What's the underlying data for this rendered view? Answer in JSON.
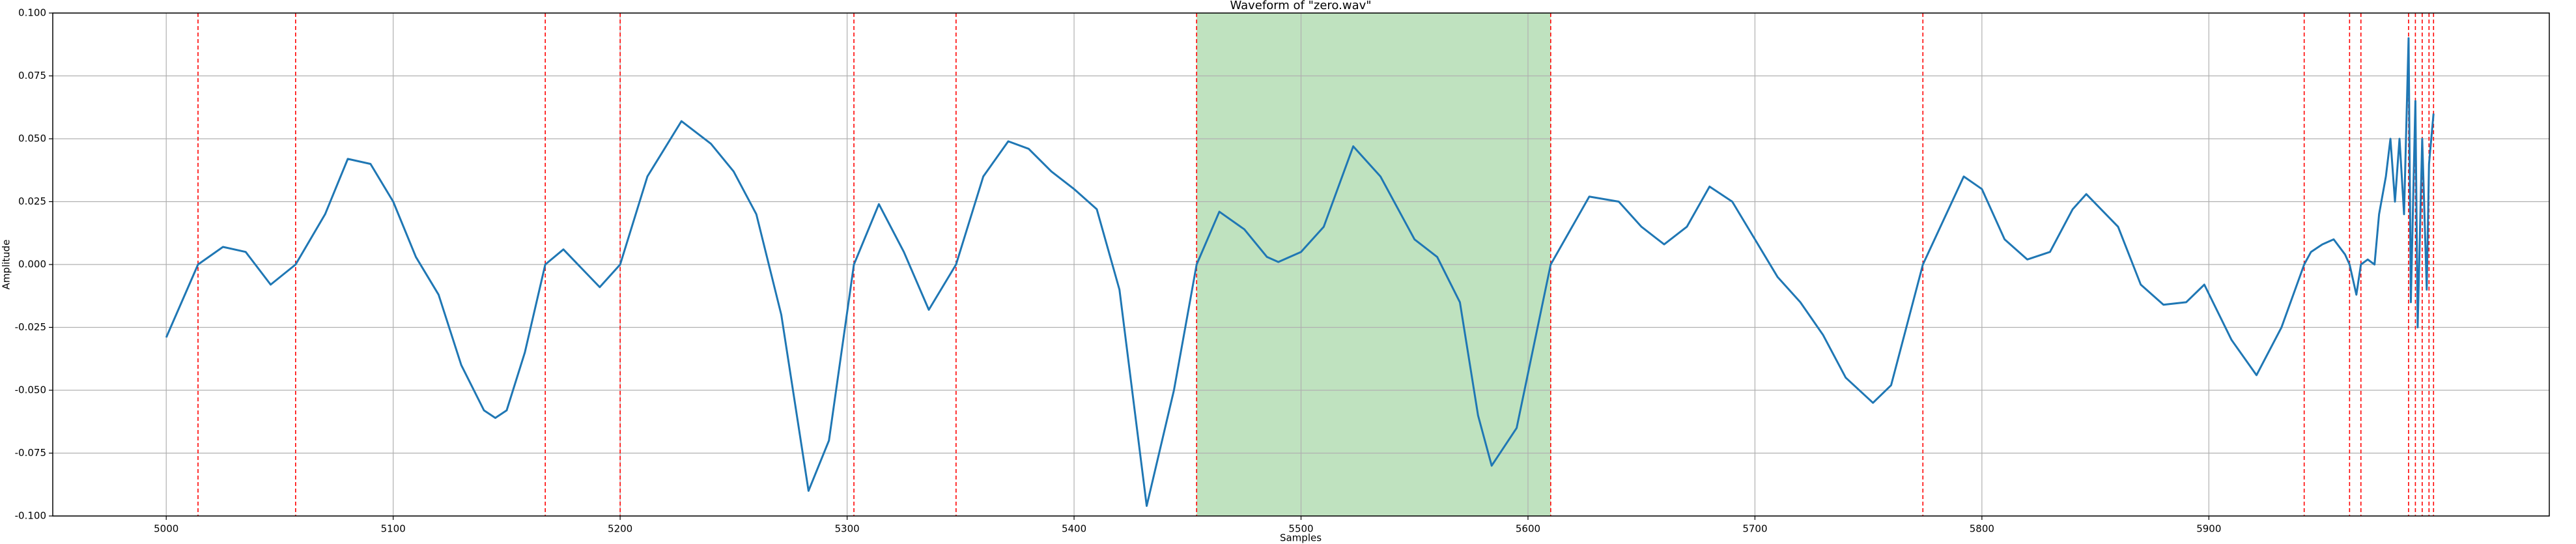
{
  "chart_data": {
    "type": "line",
    "title": "Waveform of \"zero.wav\"",
    "x_label": "Samples",
    "y_label": "Amplitude",
    "x": [
      5000,
      5014,
      5025,
      5035,
      5046,
      5057,
      5070,
      5080,
      5090,
      5100,
      5110,
      5120,
      5130,
      5140,
      5145,
      5150,
      5158,
      5167,
      5175,
      5191,
      5200,
      5212,
      5227,
      5240,
      5250,
      5260,
      5271,
      5283,
      5292,
      5303,
      5314,
      5325,
      5336,
      5348,
      5360,
      5371,
      5380,
      5390,
      5400,
      5410,
      5420,
      5432,
      5444,
      5454,
      5464,
      5475,
      5485,
      5490,
      5500,
      5510,
      5523,
      5535,
      5550,
      5560,
      5570,
      5578,
      5584,
      5595,
      5610,
      5627,
      5640,
      5650,
      5660,
      5670,
      5680,
      5690,
      5700,
      5710,
      5720,
      5730,
      5740,
      5752,
      5760,
      5774,
      5792,
      5800,
      5810,
      5820,
      5830,
      5840,
      5846,
      5860,
      5870,
      5880,
      5890,
      5898,
      5910,
      5921,
      5932,
      5942,
      5945,
      5950,
      5955,
      5960,
      5962,
      5965,
      5967,
      5970,
      5973,
      5975,
      5978,
      5980,
      5982,
      5984,
      5986,
      5988,
      5989,
      5991,
      5992,
      5994,
      5996,
      5997,
      5999
    ],
    "series": [
      {
        "color": "#1f77b4",
        "values": [
          -0.029,
          0,
          0.007,
          0.005,
          -0.008,
          0,
          0.02,
          0.042,
          0.04,
          0.025,
          0.003,
          -0.012,
          -0.04,
          -0.058,
          -0.061,
          -0.058,
          -0.035,
          0,
          0.006,
          -0.009,
          0,
          0.035,
          0.057,
          0.048,
          0.037,
          0.02,
          -0.02,
          -0.09,
          -0.07,
          0,
          0.024,
          0.005,
          -0.018,
          0,
          0.035,
          0.049,
          0.046,
          0.037,
          0.03,
          0.022,
          -0.01,
          -0.096,
          -0.05,
          0,
          0.021,
          0.014,
          0.003,
          0.001,
          0.005,
          0.015,
          0.047,
          0.035,
          0.01,
          0.003,
          -0.015,
          -0.06,
          -0.08,
          -0.065,
          0,
          0.027,
          0.025,
          0.015,
          0.008,
          0.015,
          0.031,
          0.025,
          0.01,
          -0.005,
          -0.015,
          -0.028,
          -0.045,
          -0.055,
          -0.048,
          0,
          0.035,
          0.03,
          0.01,
          0.002,
          0.005,
          0.022,
          0.028,
          0.015,
          -0.008,
          -0.016,
          -0.015,
          -0.008,
          -0.03,
          -0.044,
          -0.025,
          0,
          0.005,
          0.008,
          0.01,
          0.004,
          0,
          -0.012,
          0,
          0.002,
          0,
          0.02,
          0.035,
          0.05,
          0.025,
          0.05,
          0.02,
          0.09,
          -0.015,
          0.065,
          -0.025,
          0.05,
          -0.01,
          0.04,
          0.06
        ]
      }
    ],
    "zero_crossings": [
      5014,
      5057,
      5167,
      5200,
      5303,
      5348,
      5454,
      5610,
      5774,
      5942,
      5962,
      5967,
      5988,
      5991,
      5994,
      5997,
      5999
    ],
    "crossing_color": "#ff0000",
    "highlight_span": [
      5454,
      5610
    ],
    "highlight_color": "#2ca02c",
    "xlim": [
      4950,
      6050
    ],
    "ylim": [
      -0.1,
      0.1
    ],
    "xticks": [
      5000,
      5100,
      5200,
      5300,
      5400,
      5500,
      5600,
      5700,
      5800,
      5900
    ],
    "yticks": [
      {
        "value": -0.1,
        "label": "-0.100"
      },
      {
        "value": -0.075,
        "label": "-0.075"
      },
      {
        "value": -0.05,
        "label": "-0.050"
      },
      {
        "value": -0.025,
        "label": "-0.025"
      },
      {
        "value": 0,
        "label": "0.000"
      },
      {
        "value": 0.025,
        "label": "0.025"
      },
      {
        "value": 0.05,
        "label": "0.050"
      },
      {
        "value": 0.075,
        "label": "0.075"
      },
      {
        "value": 0.1,
        "label": "0.100"
      }
    ],
    "grid": true
  }
}
